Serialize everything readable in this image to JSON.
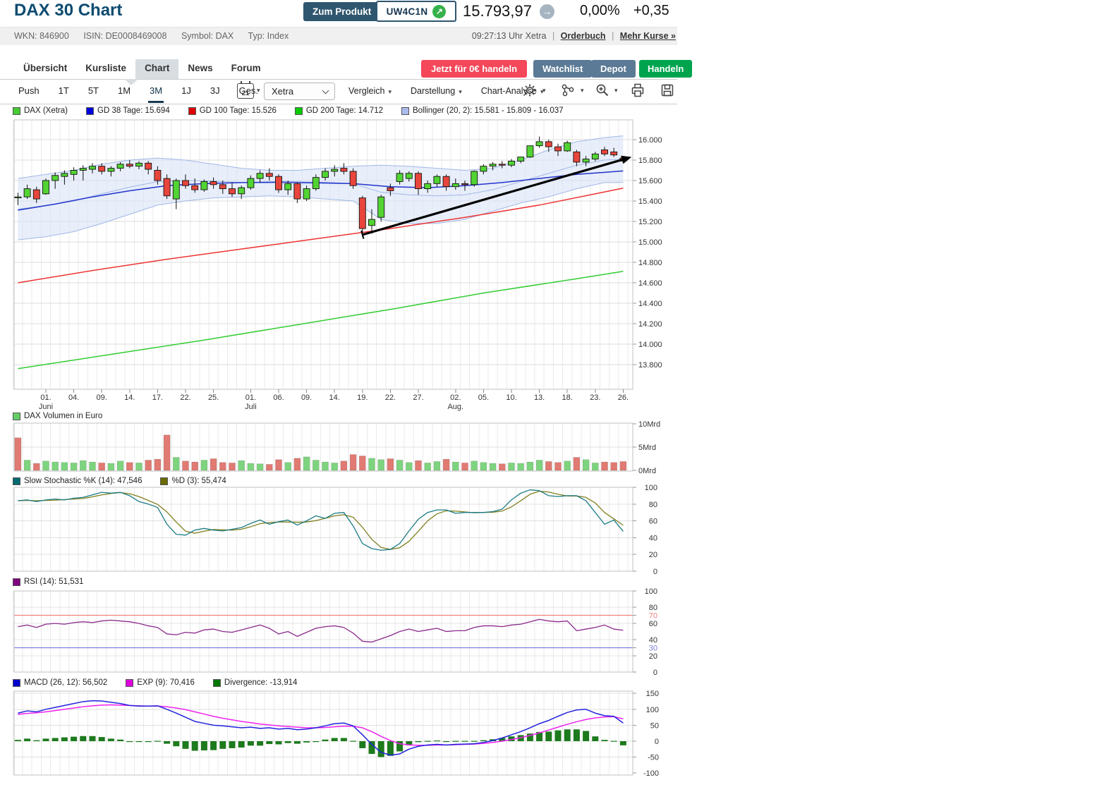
{
  "header": {
    "title": "DAX 30 Chart",
    "product_button": "Zum Produkt",
    "product_code": "UW4C1N",
    "price": "15.793,97",
    "change_pct": "0,00%",
    "change_abs": "+0,35",
    "meta": {
      "wkn": "WKN: 846900",
      "isin": "ISIN: DE0008469008",
      "symbol": "Symbol: DAX",
      "typ": "Typ: Index"
    },
    "quote_time": "09:27:13 Uhr Xetra",
    "sep": "|",
    "orderbuch": "Orderbuch",
    "mehr_kurse": "Mehr Kurse »"
  },
  "nav": {
    "tabs": [
      {
        "label": "Übersicht",
        "active": false
      },
      {
        "label": "Kursliste",
        "active": false
      },
      {
        "label": "Chart",
        "active": true
      },
      {
        "label": "News",
        "active": false
      },
      {
        "label": "Forum",
        "active": false
      }
    ],
    "cta": "Jetzt für 0€ handeln",
    "watchlist": "Watchlist",
    "depot": "Depot",
    "handeln": "Handeln"
  },
  "toolbar": {
    "ranges": [
      {
        "label": "Push",
        "active": false
      },
      {
        "label": "1T",
        "active": false
      },
      {
        "label": "5T",
        "active": false
      },
      {
        "label": "1M",
        "active": false
      },
      {
        "label": "3M",
        "active": true
      },
      {
        "label": "1J",
        "active": false
      },
      {
        "label": "3J",
        "active": false
      },
      {
        "label": "Ges.",
        "active": false
      }
    ],
    "calendar_day": "21",
    "venue": "Xetra",
    "menus": [
      "Vergleich",
      "Darstellung",
      "Chart-Analyse"
    ]
  },
  "legends": {
    "price": [
      {
        "color": "#44cc33",
        "label": "DAX (Xetra)"
      },
      {
        "color": "#0000dd",
        "label": "GD 38 Tage: 15.694"
      },
      {
        "color": "#dd0000",
        "label": "GD 100 Tage: 15.526"
      },
      {
        "color": "#00cc00",
        "label": "GD 200 Tage: 14.712"
      },
      {
        "color": "#aabbee",
        "label": "Bollinger (20, 2): 15.581 - 15.809 - 16.037"
      }
    ],
    "volume": [
      {
        "color": "#66cc66",
        "label": "DAX Volumen in Euro"
      }
    ],
    "stoch": [
      {
        "color": "#006a70",
        "label": "Slow Stochastic %K (14): 47,546"
      },
      {
        "color": "#6b6b00",
        "label": "%D (3): 55,474"
      }
    ],
    "rsi": [
      {
        "color": "#800080",
        "label": "RSI (14): 51,531"
      }
    ],
    "macd": [
      {
        "color": "#0000cc",
        "label": "MACD (26, 12): 56,502"
      },
      {
        "color": "#dd00dd",
        "label": "EXP (9): 70,416"
      },
      {
        "color": "#007700",
        "label": "Divergence: -13,914"
      }
    ]
  },
  "chart_data": {
    "type": "candlestick+indicators",
    "series_colors": {
      "candle_up": "#52d433",
      "candle_down": "#e8453c",
      "gd38": "#2233cc",
      "gd100": "#ee3333",
      "gd200": "#33cc33",
      "bollinger_fill": "#d9e3f7",
      "bollinger_line": "#9fb8e6",
      "trend": "#000000",
      "vol_up": "#7ed47e",
      "vol_down": "#e07a72",
      "stoch_k": "#1b7b85",
      "stoch_d": "#80801f",
      "rsi": "#8b2a8b",
      "rsi70": "#f08080",
      "rsi30": "#8080dd",
      "macd": "#2222dd",
      "macd_exp": "#ee22ee",
      "divergence": "#1d7a1d"
    },
    "price_axis": [
      {
        "v": 16000,
        "label": "16.000"
      },
      {
        "v": 15800,
        "label": "15.800"
      },
      {
        "v": 15600,
        "label": "15.600"
      },
      {
        "v": 15400,
        "label": "15.400"
      },
      {
        "v": 15200,
        "label": "15.200"
      },
      {
        "v": 15000,
        "label": "15.000"
      },
      {
        "v": 14800,
        "label": "14.800"
      },
      {
        "v": 14600,
        "label": "14.600"
      },
      {
        "v": 14400,
        "label": "14.400"
      },
      {
        "v": 14200,
        "label": "14.200"
      },
      {
        "v": 14000,
        "label": "14.000"
      },
      {
        "v": 13800,
        "label": "13.800"
      }
    ],
    "volume_axis": [
      {
        "v": 10,
        "label": "10Mrd"
      },
      {
        "v": 5,
        "label": "5Mrd"
      },
      {
        "v": 0,
        "label": "0Mrd"
      }
    ],
    "stoch_axis": [
      {
        "v": 100,
        "label": "100"
      },
      {
        "v": 80,
        "label": "80"
      },
      {
        "v": 60,
        "label": "60"
      },
      {
        "v": 40,
        "label": "40"
      },
      {
        "v": 20,
        "label": "20"
      },
      {
        "v": 0,
        "label": "0"
      }
    ],
    "rsi_axis": [
      {
        "v": 100,
        "label": "100"
      },
      {
        "v": 80,
        "label": "80"
      },
      {
        "v": 70,
        "label": "70",
        "color": "#f08080"
      },
      {
        "v": 60,
        "label": "60"
      },
      {
        "v": 40,
        "label": "40"
      },
      {
        "v": 30,
        "label": "30",
        "color": "#8080dd"
      },
      {
        "v": 20,
        "label": "20"
      },
      {
        "v": 0,
        "label": "0"
      }
    ],
    "macd_axis": [
      {
        "v": 150,
        "label": "150"
      },
      {
        "v": 100,
        "label": "100"
      },
      {
        "v": 50,
        "label": "50"
      },
      {
        "v": 0,
        "label": "0"
      },
      {
        "v": -50,
        "label": "-50"
      },
      {
        "v": -100,
        "label": "-100"
      }
    ],
    "x_ticks": [
      {
        "k": 3,
        "day": "01.",
        "month": "Juni"
      },
      {
        "k": 6,
        "day": "04."
      },
      {
        "k": 9,
        "day": "09."
      },
      {
        "k": 12,
        "day": "14."
      },
      {
        "k": 15,
        "day": "17."
      },
      {
        "k": 18,
        "day": "22."
      },
      {
        "k": 21,
        "day": "25."
      },
      {
        "k": 25,
        "day": "01.",
        "month": "Juli"
      },
      {
        "k": 28,
        "day": "06."
      },
      {
        "k": 31,
        "day": "09."
      },
      {
        "k": 34,
        "day": "14."
      },
      {
        "k": 37,
        "day": "19."
      },
      {
        "k": 40,
        "day": "22."
      },
      {
        "k": 43,
        "day": "27."
      },
      {
        "k": 47,
        "day": "02.",
        "month": "Aug."
      },
      {
        "k": 50,
        "day": "05."
      },
      {
        "k": 53,
        "day": "10."
      },
      {
        "k": 56,
        "day": "13."
      },
      {
        "k": 59,
        "day": "18."
      },
      {
        "k": 62,
        "day": "23."
      },
      {
        "k": 65,
        "day": "26."
      }
    ],
    "candles": [
      [
        15440,
        15480,
        15360,
        15440
      ],
      [
        15440,
        15560,
        15420,
        15520
      ],
      [
        15510,
        15540,
        15380,
        15420
      ],
      [
        15470,
        15620,
        15460,
        15600
      ],
      [
        15600,
        15680,
        15520,
        15650
      ],
      [
        15640,
        15700,
        15560,
        15670
      ],
      [
        15660,
        15730,
        15600,
        15700
      ],
      [
        15700,
        15750,
        15600,
        15720
      ],
      [
        15710,
        15770,
        15670,
        15740
      ],
      [
        15740,
        15770,
        15660,
        15690
      ],
      [
        15690,
        15740,
        15640,
        15720
      ],
      [
        15720,
        15780,
        15690,
        15760
      ],
      [
        15760,
        15800,
        15720,
        15740
      ],
      [
        15740,
        15790,
        15710,
        15770
      ],
      [
        15770,
        15790,
        15660,
        15710
      ],
      [
        15700,
        15740,
        15560,
        15600
      ],
      [
        15620,
        15660,
        15420,
        15450
      ],
      [
        15420,
        15620,
        15320,
        15600
      ],
      [
        15600,
        15660,
        15520,
        15550
      ],
      [
        15550,
        15620,
        15480,
        15510
      ],
      [
        15510,
        15610,
        15490,
        15590
      ],
      [
        15590,
        15630,
        15520,
        15560
      ],
      [
        15560,
        15600,
        15470,
        15520
      ],
      [
        15520,
        15580,
        15440,
        15470
      ],
      [
        15470,
        15550,
        15420,
        15530
      ],
      [
        15530,
        15650,
        15510,
        15620
      ],
      [
        15620,
        15700,
        15580,
        15670
      ],
      [
        15670,
        15720,
        15600,
        15640
      ],
      [
        15640,
        15660,
        15480,
        15510
      ],
      [
        15510,
        15600,
        15460,
        15570
      ],
      [
        15570,
        15580,
        15380,
        15420
      ],
      [
        15420,
        15550,
        15400,
        15520
      ],
      [
        15520,
        15660,
        15500,
        15630
      ],
      [
        15630,
        15720,
        15600,
        15690
      ],
      [
        15690,
        15750,
        15640,
        15710
      ],
      [
        15720,
        15770,
        15660,
        15690
      ],
      [
        15690,
        15720,
        15520,
        15550
      ],
      [
        15430,
        15450,
        15050,
        15130
      ],
      [
        15160,
        15320,
        15080,
        15220
      ],
      [
        15240,
        15460,
        15200,
        15440
      ],
      [
        15530,
        15570,
        15450,
        15500
      ],
      [
        15590,
        15700,
        15560,
        15670
      ],
      [
        15620,
        15690,
        15590,
        15670
      ],
      [
        15670,
        15690,
        15460,
        15520
      ],
      [
        15520,
        15600,
        15480,
        15570
      ],
      [
        15570,
        15660,
        15540,
        15640
      ],
      [
        15640,
        15660,
        15500,
        15540
      ],
      [
        15540,
        15620,
        15510,
        15570
      ],
      [
        15570,
        15600,
        15500,
        15560
      ],
      [
        15560,
        15700,
        15540,
        15690
      ],
      [
        15690,
        15760,
        15660,
        15740
      ],
      [
        15740,
        15780,
        15700,
        15760
      ],
      [
        15760,
        15790,
        15720,
        15750
      ],
      [
        15750,
        15810,
        15730,
        15790
      ],
      [
        15790,
        15830,
        15770,
        15830
      ],
      [
        15830,
        15940,
        15820,
        15940
      ],
      [
        15940,
        16030,
        15920,
        15980
      ],
      [
        15980,
        16000,
        15880,
        15930
      ],
      [
        15930,
        15960,
        15840,
        15890
      ],
      [
        15890,
        15990,
        15880,
        15970
      ],
      [
        15880,
        15900,
        15740,
        15780
      ],
      [
        15780,
        15840,
        15740,
        15810
      ],
      [
        15810,
        15880,
        15790,
        15860
      ],
      [
        15900,
        15930,
        15840,
        15860
      ],
      [
        15880,
        15920,
        15830,
        15850
      ],
      [
        15820,
        15840,
        15770,
        15790
      ]
    ],
    "volume_mrd": [
      7.0,
      2.2,
      1.5,
      2.0,
      1.8,
      1.7,
      1.6,
      2.1,
      1.8,
      1.6,
      1.5,
      2.0,
      1.7,
      1.6,
      2.2,
      2.4,
      7.6,
      2.8,
      2.0,
      1.8,
      2.2,
      2.5,
      1.7,
      1.6,
      2.1,
      1.5,
      1.4,
      1.3,
      2.3,
      1.7,
      2.6,
      2.9,
      2.2,
      1.8,
      1.6,
      2.0,
      3.4,
      3.1,
      2.6,
      2.3,
      2.5,
      2.2,
      1.7,
      2.1,
      1.6,
      1.9,
      2.4,
      1.8,
      1.6,
      2.0,
      1.7,
      1.5,
      1.4,
      1.6,
      1.5,
      1.8,
      2.2,
      1.9,
      1.7,
      2.0,
      2.8,
      2.3,
      1.6,
      1.8,
      1.7,
      1.9
    ],
    "stoch_k": [
      84,
      85,
      83,
      85,
      86,
      85,
      87,
      88,
      91,
      94,
      93,
      94,
      90,
      83,
      80,
      76,
      56,
      44,
      43,
      49,
      51,
      49,
      48,
      50,
      52,
      57,
      61,
      56,
      59,
      61,
      55,
      60,
      66,
      63,
      69,
      70,
      54,
      33,
      27,
      25,
      26,
      33,
      48,
      62,
      70,
      73,
      73,
      69,
      70,
      70,
      70,
      71,
      74,
      85,
      93,
      97,
      96,
      90,
      89,
      90,
      90,
      84,
      70,
      56,
      61,
      47.5
    ],
    "rsi": [
      56,
      58,
      55,
      59,
      60,
      59,
      61,
      62,
      61,
      63,
      64,
      63,
      62,
      60,
      57,
      55,
      47,
      46,
      49,
      48,
      52,
      53,
      50,
      49,
      52,
      55,
      58,
      54,
      47,
      50,
      44,
      49,
      54,
      56,
      57,
      55,
      48,
      38,
      37,
      41,
      45,
      50,
      53,
      50,
      52,
      54,
      50,
      51,
      51,
      55,
      57,
      57,
      56,
      58,
      59,
      62,
      65,
      63,
      62,
      63,
      51,
      53,
      55,
      58,
      53,
      51.5
    ],
    "macd": [
      88,
      95,
      92,
      100,
      106,
      112,
      118,
      124,
      127,
      126,
      122,
      118,
      112,
      110,
      110,
      111,
      100,
      88,
      75,
      62,
      56,
      50,
      48,
      45,
      42,
      44,
      40,
      42,
      38,
      40,
      36,
      38,
      42,
      48,
      55,
      57,
      48,
      20,
      -10,
      -35,
      -44,
      -40,
      -25,
      -16,
      -12,
      -10,
      -12,
      -10,
      -9,
      -8,
      -4,
      2,
      10,
      20,
      30,
      42,
      55,
      65,
      78,
      90,
      98,
      100,
      88,
      80,
      78,
      57
    ],
    "macd_exp": [
      84,
      87,
      89,
      92,
      96,
      100,
      104,
      108,
      111,
      113,
      114,
      113,
      112,
      111,
      110,
      110,
      108,
      104,
      99,
      92,
      85,
      78,
      72,
      67,
      62,
      58,
      54,
      51,
      48,
      46,
      44,
      42,
      42,
      43,
      45,
      47,
      47,
      42,
      30,
      15,
      2,
      -8,
      -12,
      -13,
      -13,
      -12,
      -12,
      -11,
      -10,
      -9,
      -7,
      -4,
      0,
      5,
      11,
      18,
      26,
      35,
      44,
      53,
      61,
      68,
      73,
      76,
      77,
      70
    ],
    "bollinger": {
      "k": [
        0,
        3,
        6,
        9,
        12,
        15,
        18,
        21,
        24,
        27,
        30,
        33,
        36,
        39,
        42,
        45,
        48,
        51,
        54,
        57,
        60,
        63,
        65
      ],
      "upper": [
        15620,
        15660,
        15700,
        15760,
        15800,
        15820,
        15800,
        15760,
        15720,
        15700,
        15700,
        15720,
        15740,
        15750,
        15740,
        15720,
        15700,
        15720,
        15800,
        15900,
        15980,
        16020,
        16037
      ],
      "lower": [
        15020,
        15050,
        15100,
        15180,
        15270,
        15360,
        15400,
        15430,
        15440,
        15450,
        15440,
        15420,
        15400,
        15220,
        15180,
        15180,
        15220,
        15300,
        15380,
        15440,
        15520,
        15580,
        15581
      ]
    },
    "gd38": [
      [
        0,
        15310
      ],
      [
        4,
        15370
      ],
      [
        8,
        15440
      ],
      [
        12,
        15500
      ],
      [
        16,
        15550
      ],
      [
        20,
        15570
      ],
      [
        24,
        15580
      ],
      [
        28,
        15585
      ],
      [
        32,
        15580
      ],
      [
        36,
        15570
      ],
      [
        40,
        15540
      ],
      [
        44,
        15530
      ],
      [
        48,
        15550
      ],
      [
        52,
        15580
      ],
      [
        56,
        15620
      ],
      [
        60,
        15660
      ],
      [
        63,
        15680
      ],
      [
        65,
        15694
      ]
    ],
    "gd100": [
      [
        0,
        14600
      ],
      [
        8,
        14720
      ],
      [
        16,
        14830
      ],
      [
        24,
        14930
      ],
      [
        32,
        15030
      ],
      [
        40,
        15130
      ],
      [
        48,
        15240
      ],
      [
        56,
        15360
      ],
      [
        62,
        15470
      ],
      [
        65,
        15526
      ]
    ],
    "gd200": [
      [
        0,
        13760
      ],
      [
        10,
        13900
      ],
      [
        20,
        14040
      ],
      [
        30,
        14190
      ],
      [
        40,
        14340
      ],
      [
        50,
        14500
      ],
      [
        60,
        14640
      ],
      [
        65,
        14712
      ]
    ],
    "trendline": {
      "from": [
        37,
        15070
      ],
      "to": [
        65.9,
        15830
      ]
    }
  }
}
